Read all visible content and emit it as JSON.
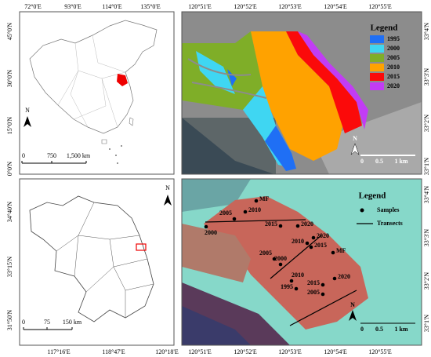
{
  "china_map": {
    "lon_labels": [
      "72°0'E",
      "93°0'E",
      "114°0'E",
      "135°0'E"
    ],
    "lat_labels": [
      "45°0'N",
      "30°0'N",
      "15°0'N",
      "0°0'N"
    ],
    "scale_labels": [
      "0",
      "750",
      "1,500 km"
    ],
    "north": "N"
  },
  "land_cover_map": {
    "lon_labels": [
      "120°51'E",
      "120°52'E",
      "120°53'E",
      "120°54'E",
      "120°55'E"
    ],
    "lat_labels": [
      "33°4'N",
      "33°3'N",
      "33°2'N",
      "33°1'N"
    ],
    "legend": {
      "title": "Legend",
      "items": [
        {
          "label": "1995",
          "color": "#1f6ff5"
        },
        {
          "label": "2000",
          "color": "#3fd6f2"
        },
        {
          "label": "2005",
          "color": "#7fae28"
        },
        {
          "label": "2010",
          "color": "#ffa200"
        },
        {
          "label": "2015",
          "color": "#fb0a0a"
        },
        {
          "label": "2020",
          "color": "#c23cf5"
        }
      ]
    },
    "scale_labels": [
      "0",
      "0.5",
      "1 km"
    ],
    "north": "N"
  },
  "jiangsu_map": {
    "lat_labels": [
      "34°40'N",
      "33°15'N",
      "31°50'N"
    ],
    "lon_labels": [
      "117°16'E",
      "118°47'E",
      "120°18'E"
    ],
    "scale_labels": [
      "0",
      "75",
      "150 km"
    ],
    "north": "N"
  },
  "sample_map": {
    "lon_labels": [
      "120°51'E",
      "120°52'E",
      "120°53'E",
      "120°54'E",
      "120°55'E"
    ],
    "lat_labels": [
      "33°4'N",
      "33°3'N",
      "33°2'N",
      "33°1'N"
    ],
    "legend": {
      "title": "Legend",
      "samples": "Samples",
      "transects": "Transects"
    },
    "sample_labels": [
      "MF",
      "2010",
      "2005",
      "2000",
      "2015",
      "2020",
      "2020",
      "2010",
      "2015",
      "MF",
      "2005",
      "2000",
      "2020",
      "2015",
      "1995",
      "2010",
      "2005"
    ],
    "scale_labels": [
      "0",
      "0.5",
      "1 km"
    ],
    "north": "N"
  }
}
